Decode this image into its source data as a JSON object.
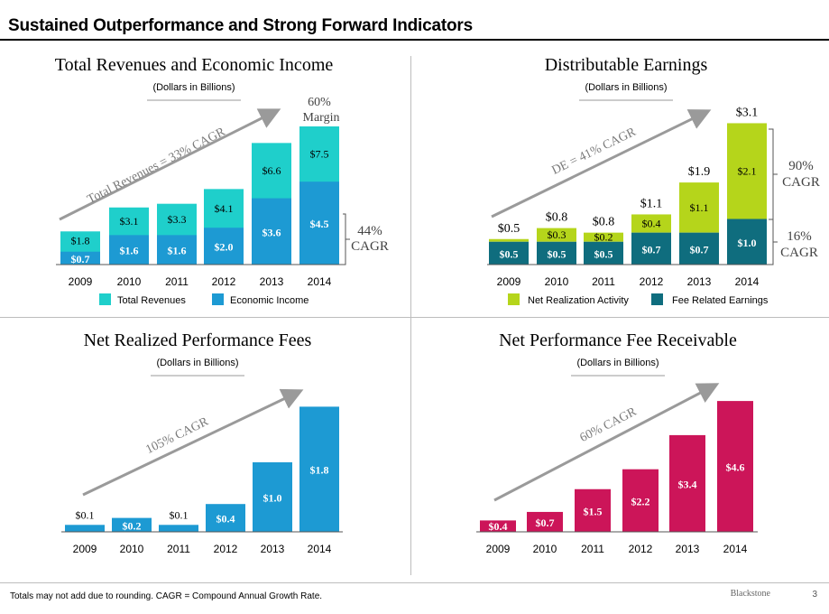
{
  "header": {
    "title": "Sustained Outperformance and Strong Forward Indicators"
  },
  "footer": {
    "note": "Totals may not add due to rounding. CAGR = Compound Annual Growth Rate.",
    "brand": "Blackstone",
    "page": "3"
  },
  "colors": {
    "teal": "#1fcfcb",
    "blue": "#1d9ad3",
    "lime": "#b5d51b",
    "dark_teal": "#0f6d7e",
    "magenta": "#cc1559",
    "arrow": "#9a9a9a"
  },
  "chart_data": [
    {
      "type": "bar",
      "stacked": true,
      "title": "Total Revenues and Economic Income",
      "subtitle": "(Dollars in Billions)",
      "categories": [
        "2009",
        "2010",
        "2011",
        "2012",
        "2013",
        "2014"
      ],
      "series": [
        {
          "name": "Economic Income",
          "values": [
            0.7,
            1.6,
            1.6,
            2.0,
            3.6,
            4.5
          ],
          "labels": [
            "$0.7",
            "$1.6",
            "$1.6",
            "$2.0",
            "$3.6",
            "$4.5"
          ]
        },
        {
          "name": "Total Revenues",
          "values": [
            1.8,
            3.1,
            3.3,
            4.1,
            6.6,
            7.5
          ],
          "labels": [
            "$1.8",
            "$3.1",
            "$3.3",
            "$4.1",
            "$6.6",
            "$7.5"
          ]
        }
      ],
      "annotations": {
        "arrow": "Total Revenues = 33% CAGR",
        "top_line1": "60%",
        "top_line2": "Margin",
        "side_line1": "44%",
        "side_line2": "CAGR"
      },
      "legend": "bottom"
    },
    {
      "type": "bar",
      "stacked": true,
      "title": "Distributable Earnings",
      "subtitle": "(Dollars in Billions)",
      "categories": [
        "2009",
        "2010",
        "2011",
        "2012",
        "2013",
        "2014"
      ],
      "series": [
        {
          "name": "Fee Related Earnings",
          "values": [
            0.5,
            0.5,
            0.5,
            0.7,
            0.7,
            1.0
          ],
          "labels": [
            "$0.5",
            "$0.5",
            "$0.5",
            "$0.7",
            "$0.7",
            "$1.0"
          ]
        },
        {
          "name": "Net Realization Activity",
          "values": [
            0.0,
            0.3,
            0.2,
            0.4,
            1.1,
            2.1
          ],
          "labels": [
            "",
            "$0.3",
            "$0.2",
            "$0.4",
            "$1.1",
            "$2.1"
          ]
        }
      ],
      "totals": [
        "$0.5",
        "$0.8",
        "$0.8",
        "$1.1",
        "$1.9",
        "$3.1"
      ],
      "annotations": {
        "arrow": "DE = 41% CAGR",
        "side_top_line1": "90%",
        "side_top_line2": "CAGR",
        "side_bottom_line1": "16%",
        "side_bottom_line2": "CAGR"
      },
      "legend": "bottom"
    },
    {
      "type": "bar",
      "title": "Net Realized Performance Fees",
      "subtitle": "(Dollars in Billions)",
      "categories": [
        "2009",
        "2010",
        "2011",
        "2012",
        "2013",
        "2014"
      ],
      "values": [
        0.1,
        0.2,
        0.1,
        0.4,
        1.0,
        1.8
      ],
      "labels": [
        "$0.1",
        "$0.2",
        "$0.1",
        "$0.4",
        "$1.0",
        "$1.8"
      ],
      "annotations": {
        "arrow": "105% CAGR"
      }
    },
    {
      "type": "bar",
      "title": "Net Performance Fee Receivable",
      "subtitle": "(Dollars in Billions)",
      "categories": [
        "2009",
        "2010",
        "2011",
        "2012",
        "2013",
        "2014"
      ],
      "values": [
        0.4,
        0.7,
        1.5,
        2.2,
        3.4,
        4.6
      ],
      "labels": [
        "$0.4",
        "$0.7",
        "$1.5",
        "$2.2",
        "$3.4",
        "$4.6"
      ],
      "annotations": {
        "arrow": "60% CAGR"
      }
    }
  ]
}
